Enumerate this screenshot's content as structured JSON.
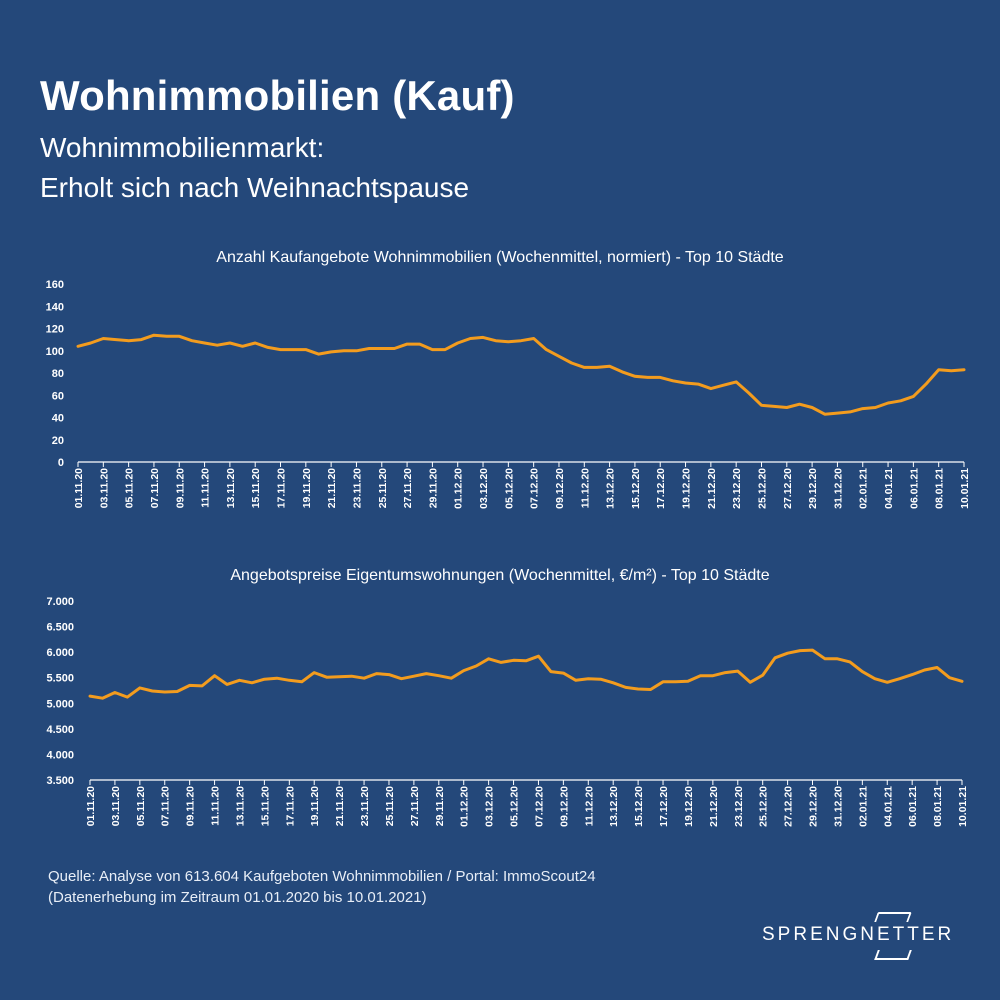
{
  "header": {
    "title": "Wohnimmobilien (Kauf)",
    "subtitle_line1": "Wohnimmobilienmarkt:",
    "subtitle_line2": "Erholt sich nach Weihnachtspause"
  },
  "colors": {
    "background": "#24487a",
    "line": "#f39c1e",
    "text": "#ffffff"
  },
  "chart_data": [
    {
      "type": "line",
      "title": "Anzahl Kaufangebote Wohnimmobilien (Wochenmittel, normiert) - Top 10 Städte",
      "xlabel": "",
      "ylabel": "",
      "ylim": [
        0,
        160
      ],
      "yticks": [
        0,
        20,
        40,
        60,
        80,
        100,
        120,
        140,
        160
      ],
      "ytick_labels": [
        "0",
        "20",
        "40",
        "60",
        "80",
        "100",
        "120",
        "140",
        "160"
      ],
      "xtick_labels": [
        "01.11.20",
        "03.11.20",
        "05.11.20",
        "07.11.20",
        "09.11.20",
        "11.11.20",
        "13.11.20",
        "15.11.20",
        "17.11.20",
        "19.11.20",
        "21.11.20",
        "23.11.20",
        "25.11.20",
        "27.11.20",
        "29.11.20",
        "01.12.20",
        "03.12.20",
        "05.12.20",
        "07.12.20",
        "09.12.20",
        "11.12.20",
        "13.12.20",
        "15.12.20",
        "17.12.20",
        "19.12.20",
        "21.12.20",
        "23.12.20",
        "25.12.20",
        "27.12.20",
        "29.12.20",
        "31.12.20",
        "02.01.21",
        "04.01.21",
        "06.01.21",
        "08.01.21",
        "10.01.21"
      ],
      "grid": false,
      "series": [
        {
          "values": [
            104,
            107,
            111,
            110,
            109,
            110,
            114,
            113,
            113,
            109,
            107,
            105,
            107,
            104,
            107,
            103,
            101,
            101,
            101,
            97,
            99,
            100,
            100,
            102,
            102,
            102,
            106,
            106,
            101,
            101,
            107,
            111,
            112,
            109,
            108,
            109,
            111,
            101,
            95,
            89,
            85,
            85,
            86,
            81,
            77,
            76,
            76,
            73,
            71,
            70,
            66,
            69,
            72,
            62,
            51,
            50,
            49,
            52,
            49,
            43,
            44,
            45,
            48,
            49,
            53,
            55,
            59,
            70,
            83,
            82,
            83
          ]
        }
      ]
    },
    {
      "type": "line",
      "title": "Angebotspreise Eigentumswohnungen (Wochenmittel, €/m²) - Top 10 Städte",
      "xlabel": "",
      "ylabel": "",
      "ylim": [
        3500,
        7000
      ],
      "yticks": [
        3500,
        4000,
        4500,
        5000,
        5500,
        6000,
        6500,
        7000
      ],
      "ytick_labels": [
        "3.500",
        "4.000",
        "4.500",
        "5.000",
        "5.500",
        "6.000",
        "6.500",
        "7.000"
      ],
      "xtick_labels": [
        "01.11.20",
        "03.11.20",
        "05.11.20",
        "07.11.20",
        "09.11.20",
        "11.11.20",
        "13.11.20",
        "15.11.20",
        "17.11.20",
        "19.11.20",
        "21.11.20",
        "23.11.20",
        "25.11.20",
        "27.11.20",
        "29.11.20",
        "01.12.20",
        "03.12.20",
        "05.12.20",
        "07.12.20",
        "09.12.20",
        "11.12.20",
        "13.12.20",
        "15.12.20",
        "17.12.20",
        "19.12.20",
        "21.12.20",
        "23.12.20",
        "25.12.20",
        "27.12.20",
        "29.12.20",
        "31.12.20",
        "02.01.21",
        "04.01.21",
        "06.01.21",
        "08.01.21",
        "10.01.21"
      ],
      "grid": false,
      "series": [
        {
          "values": [
            5140,
            5100,
            5210,
            5120,
            5300,
            5240,
            5220,
            5230,
            5350,
            5340,
            5540,
            5370,
            5450,
            5400,
            5470,
            5490,
            5450,
            5420,
            5600,
            5510,
            5520,
            5530,
            5490,
            5580,
            5560,
            5480,
            5530,
            5580,
            5540,
            5490,
            5640,
            5730,
            5870,
            5800,
            5840,
            5830,
            5920,
            5620,
            5590,
            5450,
            5480,
            5470,
            5400,
            5310,
            5280,
            5270,
            5420,
            5420,
            5430,
            5540,
            5540,
            5600,
            5630,
            5410,
            5550,
            5890,
            5980,
            6030,
            6040,
            5870,
            5870,
            5810,
            5620,
            5480,
            5410,
            5480,
            5560,
            5650,
            5700,
            5500,
            5430
          ]
        }
      ]
    }
  ],
  "source": {
    "line1": "Quelle: Analyse von 613.604 Kaufgeboten Wohnimmobilien / Portal: ImmoScout24",
    "line2": "(Datenerhebung im Zeitraum 01.01.2020 bis 10.01.2021)"
  },
  "logo": {
    "text": "SPRENGNETTER"
  }
}
